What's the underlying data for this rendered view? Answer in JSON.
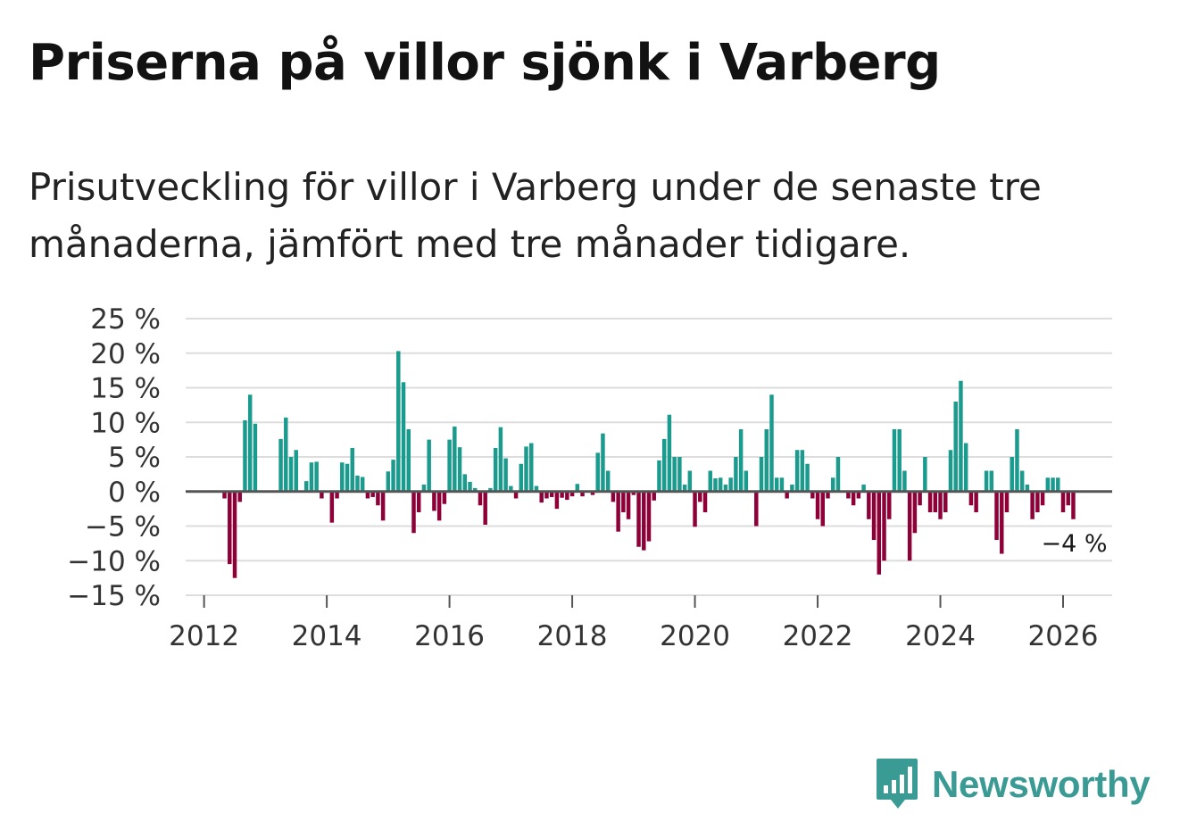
{
  "title": "Priserna på villor sjönk i Varberg",
  "subtitle": "Prisutveckling för villor i Varberg under de senaste tre månaderna, jämfört med tre månader tidigare.",
  "brand": {
    "name": "Newsworthy",
    "icon": "newsworthy-logo-icon"
  },
  "colors": {
    "positive": "#1a9b8e",
    "negative": "#8e0038",
    "zero_line": "#555555",
    "grid": "#dddddd",
    "brand": "#3a9a94"
  },
  "chart_data": {
    "type": "bar",
    "title": "Priserna på villor sjönk i Varberg",
    "xlabel": "",
    "ylabel": "",
    "ylim": [
      -15,
      25
    ],
    "xlim": [
      2011.7,
      2026.8
    ],
    "yticks": [
      -15,
      -10,
      -5,
      0,
      5,
      10,
      15,
      20,
      25
    ],
    "ytick_labels": [
      "−15 %",
      "−10 %",
      "−5 %",
      "0 %",
      "5 %",
      "10 %",
      "15 %",
      "20 %",
      "25 %"
    ],
    "xticks": [
      2012,
      2014,
      2016,
      2018,
      2020,
      2022,
      2024,
      2026
    ],
    "xtick_labels": [
      "2012",
      "2014",
      "2016",
      "2018",
      "2020",
      "2022",
      "2024",
      "2026"
    ],
    "grid": true,
    "end_label": "−4 %",
    "series": [
      {
        "name": "Prisutveckling",
        "start": "2012-01",
        "frequency": "monthly",
        "values": [
          null,
          null,
          null,
          null,
          -1,
          -10.5,
          -12.5,
          -1.5,
          10.3,
          14,
          9.8,
          null,
          null,
          null,
          null,
          7.6,
          10.7,
          5,
          6,
          0,
          1.5,
          4.2,
          4.3,
          -1,
          0,
          -4.5,
          -1,
          4.2,
          4,
          6.3,
          2.3,
          2.1,
          -1,
          -0.8,
          -2,
          -4.2,
          2.9,
          4.6,
          20.3,
          15.8,
          9,
          -6,
          -3,
          1,
          7.5,
          -2.8,
          -4.2,
          -1.8,
          7.5,
          9.4,
          6.4,
          2.5,
          1.4,
          0.5,
          -2,
          -4.8,
          0.5,
          6.3,
          9.3,
          4.8,
          0.8,
          -1,
          4,
          6.5,
          7,
          0.8,
          -1.6,
          -1,
          -0.8,
          -2.5,
          -0.9,
          -1.2,
          -0.7,
          1.1,
          -0.7,
          0,
          -0.5,
          5.6,
          8.4,
          3,
          -1.5,
          -5.8,
          -3,
          -4,
          -0.5,
          -8,
          -8.5,
          -7.2,
          -1.3,
          4.5,
          7.6,
          11.1,
          5,
          5,
          1,
          3,
          -5.1,
          -1.5,
          -3,
          3,
          1.9,
          2,
          1,
          2,
          5,
          9,
          3,
          null,
          -5,
          5,
          9,
          14,
          2,
          2,
          -1,
          1,
          6,
          6,
          4,
          -1,
          -4,
          -5,
          -1,
          2,
          5,
          null,
          -1,
          -2,
          -1,
          1,
          -4,
          -7,
          -12,
          -10,
          -4,
          9,
          9,
          3,
          -10,
          -6,
          -2,
          5,
          -3,
          -3,
          -4,
          -3,
          6,
          13,
          16,
          7,
          -2,
          -3,
          null,
          3,
          3,
          -7,
          -9,
          -3,
          5,
          9,
          3,
          1,
          -4,
          -3,
          -2,
          2,
          2,
          2,
          -3,
          -2,
          -4
        ]
      }
    ]
  }
}
